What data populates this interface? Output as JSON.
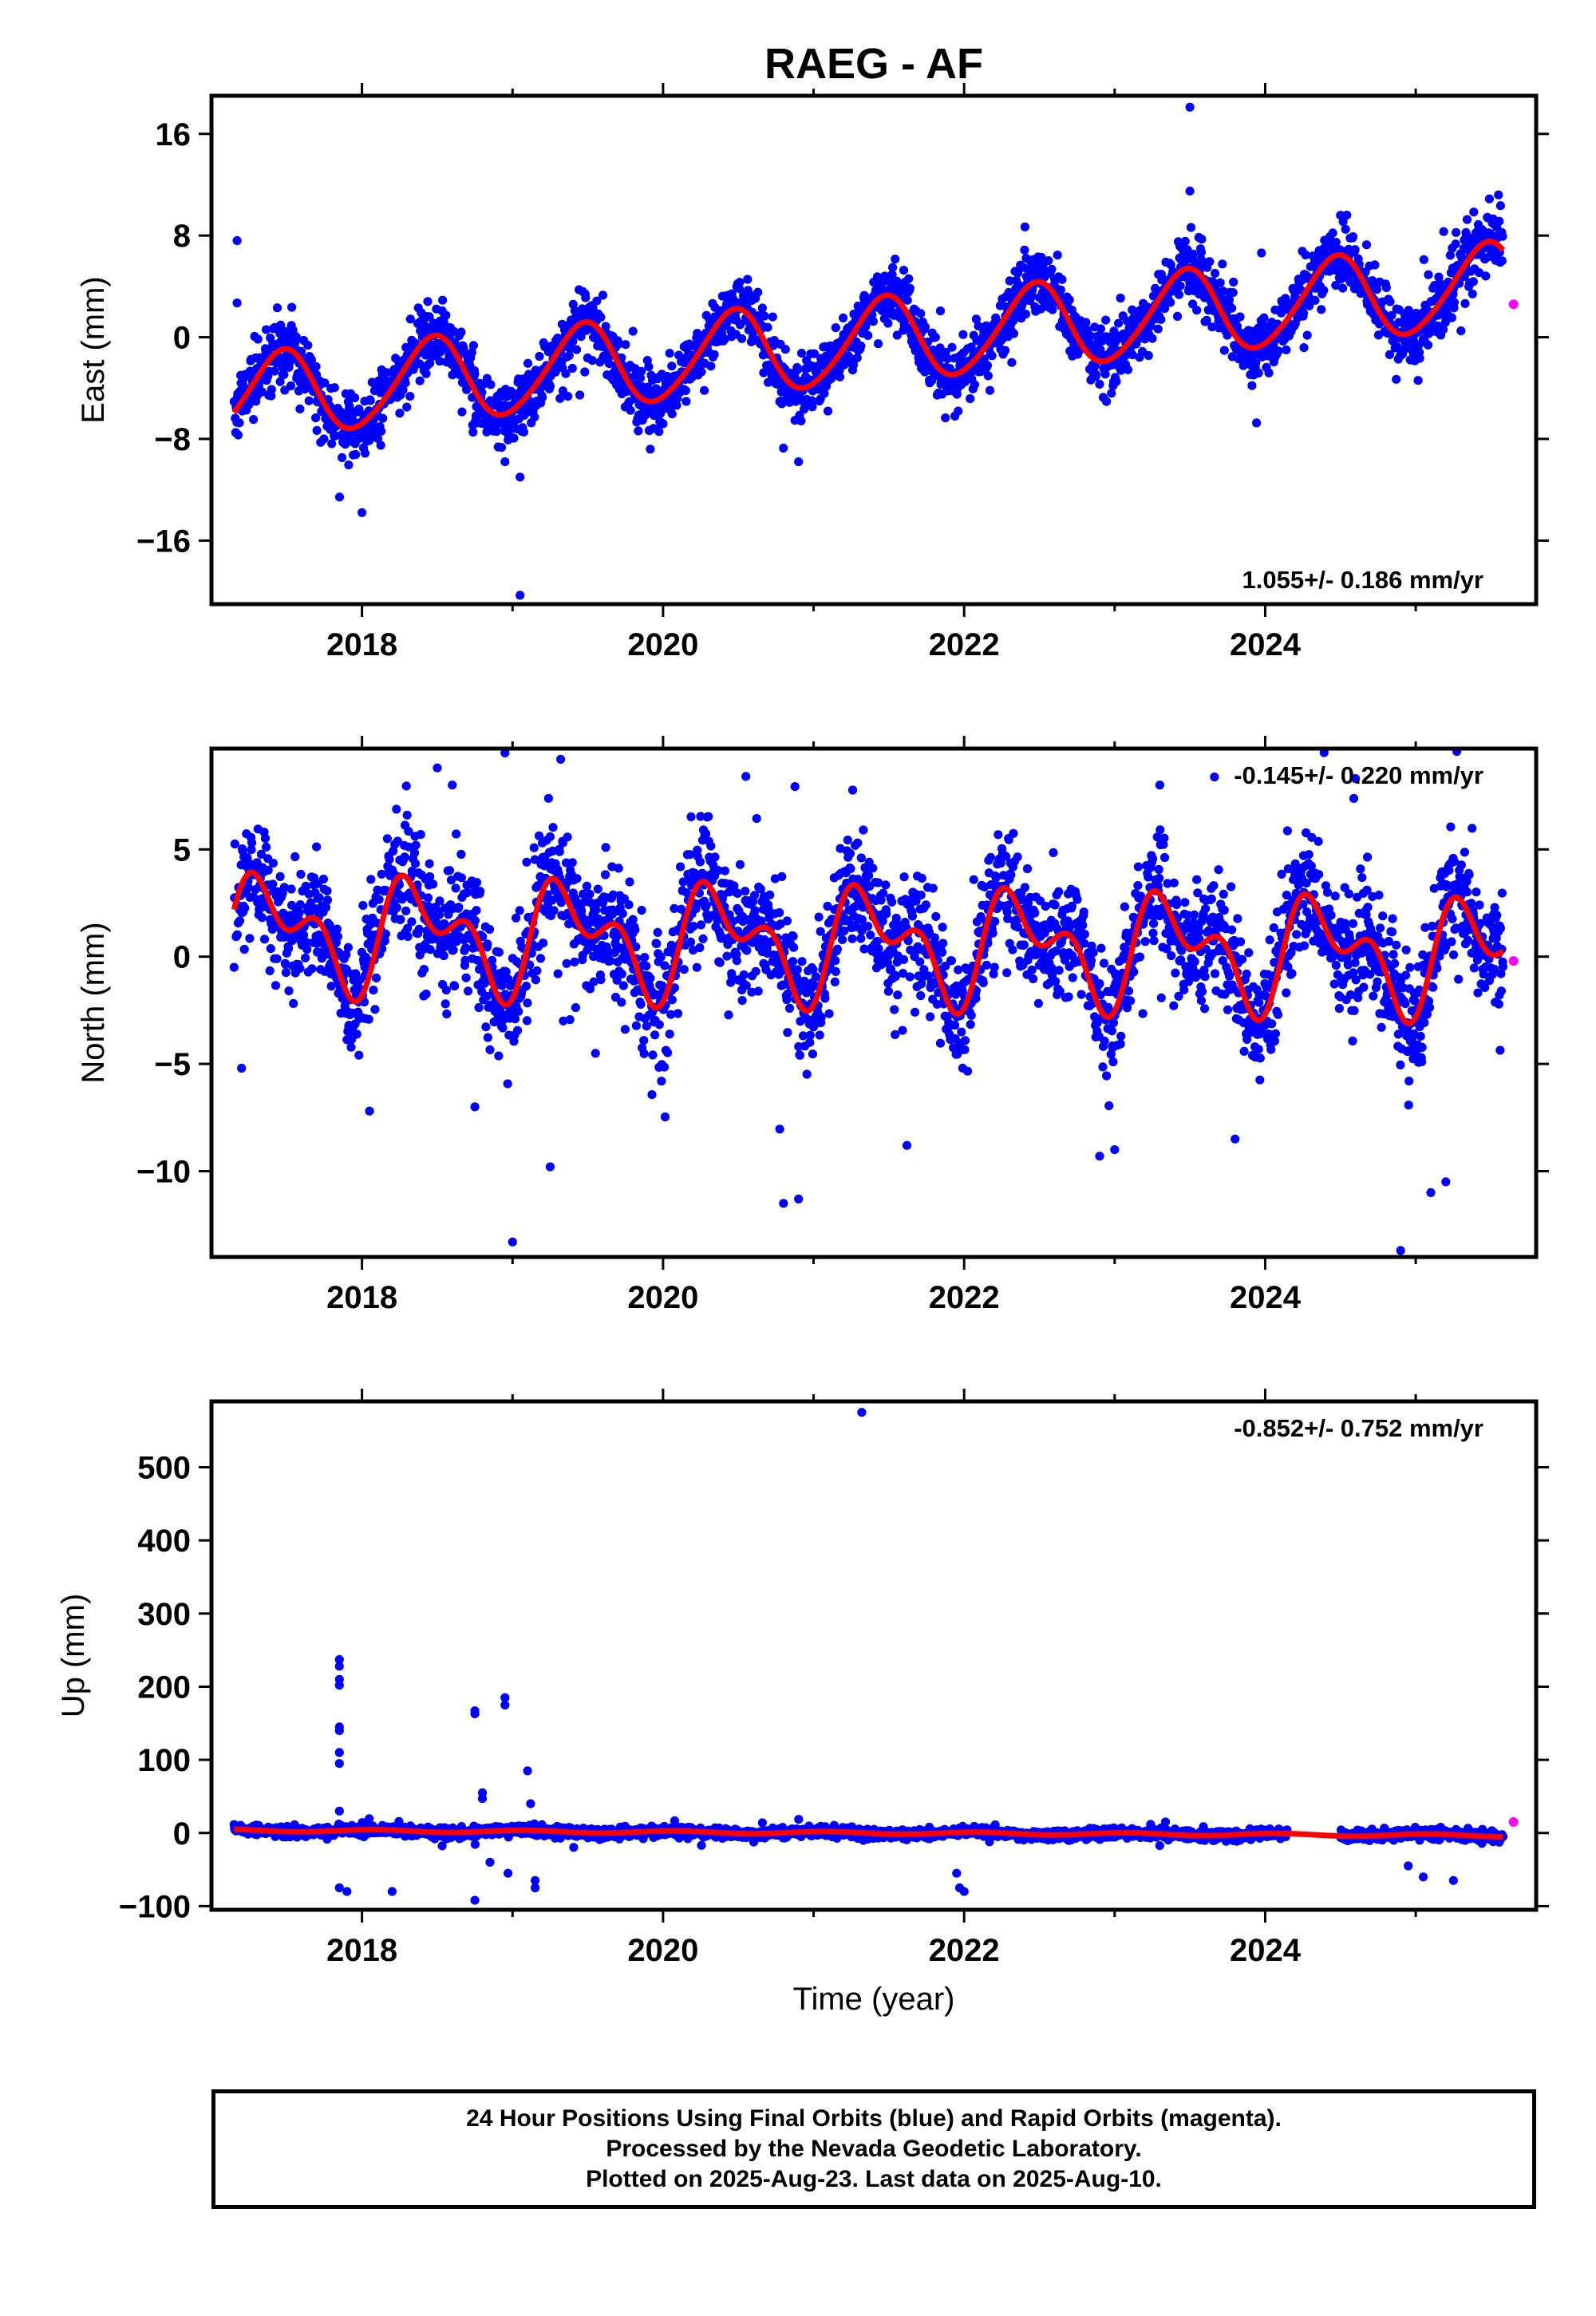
{
  "title": "RAEG - AF",
  "chart_data": [
    {
      "type": "scatter",
      "name_label": "East (mm)",
      "ylabel": "East (mm)",
      "xlabel": "",
      "xlim": [
        2017.0,
        2025.8
      ],
      "ylim": [
        -21,
        19
      ],
      "yticks": [
        "16",
        "8",
        "0",
        "−8",
        "−16"
      ],
      "ytick_values": [
        16,
        8,
        0,
        -8,
        -16
      ],
      "xticks": [
        "2018",
        "2020",
        "2022",
        "2024"
      ],
      "xtick_values": [
        2018,
        2020,
        2022,
        2024
      ],
      "rate_text": "1.055+/- 0.186 mm/yr",
      "rate_placement": "bottom-right",
      "model": {
        "offset": -0.3,
        "trend": 1.055,
        "ref_year": 2021.4,
        "annual": [
          -3.2,
          0.8
        ],
        "semiannual": [
          0.3,
          0.2
        ]
      },
      "data_start": 2017.15,
      "data_end": 2025.58,
      "outliers": [
        [
          2017.17,
          7.6
        ],
        [
          2017.17,
          2.7
        ],
        [
          2018.0,
          -13.8
        ],
        [
          2018.95,
          -9.8
        ],
        [
          2019.05,
          -11.0
        ],
        [
          2019.05,
          -20.3
        ],
        [
          2020.9,
          -9.8
        ],
        [
          2023.5,
          18.1
        ],
        [
          2023.5,
          11.5
        ],
        [
          2024.5,
          9.6
        ],
        [
          2025.55,
          11.2
        ]
      ],
      "rapid": [
        [
          2025.65,
          2.6
        ]
      ],
      "gaps": [],
      "grid": false
    },
    {
      "type": "scatter",
      "ylabel": "North (mm)",
      "xlabel": "",
      "xlim": [
        2017.0,
        2025.8
      ],
      "ylim": [
        -14,
        9.7
      ],
      "yticks": [
        "5",
        "0",
        "−5",
        "−10"
      ],
      "ytick_values": [
        5,
        0,
        -5,
        -10
      ],
      "xticks": [
        "2018",
        "2020",
        "2022",
        "2024"
      ],
      "xtick_values": [
        2018,
        2020,
        2022,
        2024
      ],
      "rate_text": "-0.145+/- 0.220 mm/yr",
      "rate_placement": "top-right",
      "model": {
        "offset": 0.6,
        "trend": -0.145,
        "ref_year": 2021.4,
        "annual": [
          -1.5,
          1.3
        ],
        "semiannual": [
          -1.4,
          0.4
        ]
      },
      "data_start": 2017.15,
      "data_end": 2025.58,
      "outliers": [
        [
          2017.2,
          -5.2
        ],
        [
          2018.05,
          -7.2
        ],
        [
          2018.5,
          8.8
        ],
        [
          2018.6,
          8.0
        ],
        [
          2018.75,
          -7.0
        ],
        [
          2018.95,
          9.5
        ],
        [
          2019.0,
          -13.3
        ],
        [
          2019.25,
          -9.8
        ],
        [
          2019.32,
          9.2
        ],
        [
          2020.55,
          8.4
        ],
        [
          2020.8,
          -11.5
        ],
        [
          2020.9,
          -11.3
        ],
        [
          2021.62,
          -8.8
        ],
        [
          2022.9,
          -9.3
        ],
        [
          2023.0,
          -9.0
        ],
        [
          2023.3,
          8.0
        ],
        [
          2023.8,
          -8.5
        ],
        [
          2024.6,
          8.3
        ],
        [
          2024.9,
          -13.7
        ],
        [
          2025.1,
          -11.0
        ],
        [
          2025.2,
          -10.5
        ]
      ],
      "rapid": [
        [
          2025.65,
          -0.2
        ]
      ],
      "gaps": [],
      "grid": false
    },
    {
      "type": "scatter",
      "ylabel": "Up (mm)",
      "xlabel": "Time (year)",
      "xlim": [
        2017.0,
        2025.8
      ],
      "ylim": [
        -105,
        590
      ],
      "yticks": [
        "500",
        "400",
        "300",
        "200",
        "100",
        "0",
        "−100"
      ],
      "ytick_values": [
        500,
        400,
        300,
        200,
        100,
        0,
        -100
      ],
      "xticks": [
        "2018",
        "2020",
        "2022",
        "2024"
      ],
      "xtick_values": [
        2018,
        2020,
        2022,
        2024
      ],
      "rate_text": "-0.852+/- 0.752 mm/yr",
      "rate_placement": "top-right",
      "model": {
        "offset": 0.0,
        "trend": -0.852,
        "ref_year": 2021.4,
        "annual": [
          1.5,
          0.8
        ],
        "semiannual": [
          0.0,
          0.0
        ]
      },
      "data_start": 2017.15,
      "data_end": 2025.58,
      "outliers": [
        [
          2021.32,
          575
        ],
        [
          2017.85,
          237
        ],
        [
          2017.85,
          228
        ],
        [
          2017.85,
          210
        ],
        [
          2017.85,
          202
        ],
        [
          2017.85,
          145
        ],
        [
          2017.85,
          140
        ],
        [
          2017.85,
          110
        ],
        [
          2017.85,
          95
        ],
        [
          2017.85,
          30
        ],
        [
          2017.85,
          -75
        ],
        [
          2017.9,
          -80
        ],
        [
          2018.2,
          -80
        ],
        [
          2018.75,
          167
        ],
        [
          2018.75,
          163
        ],
        [
          2018.8,
          55
        ],
        [
          2018.8,
          47
        ],
        [
          2018.75,
          -92
        ],
        [
          2018.85,
          -40
        ],
        [
          2018.95,
          185
        ],
        [
          2018.95,
          175
        ],
        [
          2018.97,
          -55
        ],
        [
          2019.1,
          85
        ],
        [
          2019.12,
          40
        ],
        [
          2019.15,
          -65
        ],
        [
          2019.15,
          -75
        ],
        [
          2021.95,
          -55
        ],
        [
          2021.97,
          -75
        ],
        [
          2022.0,
          -80
        ],
        [
          2025.05,
          -60
        ],
        [
          2025.25,
          -65
        ],
        [
          2024.95,
          -45
        ]
      ],
      "rapid": [
        [
          2025.65,
          15
        ]
      ],
      "gaps": [
        [
          2024.15,
          2024.5
        ]
      ],
      "grid": false
    }
  ],
  "colors": {
    "final": "#0000ff",
    "rapid": "#ff00ff",
    "model": "#ff0000",
    "axes": "#000000"
  },
  "footer": {
    "line1": "24 Hour Positions Using Final Orbits (blue) and Rapid Orbits (magenta).",
    "line2": "Processed by the Nevada Geodetic Laboratory.",
    "line3": "Plotted on 2025-Aug-23. Last data on 2025-Aug-10."
  }
}
